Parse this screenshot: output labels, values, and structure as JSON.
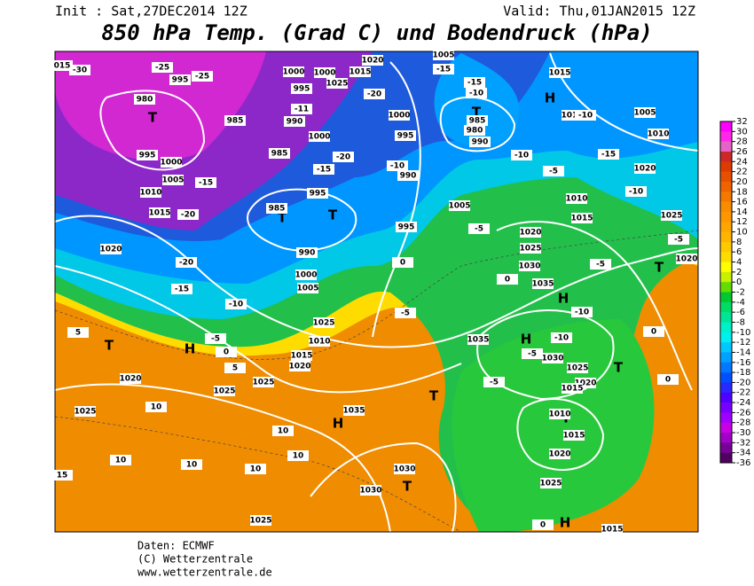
{
  "header": {
    "init": "Init : Sat,27DEC2014 12Z",
    "valid": "Valid: Thu,01JAN2015 12Z",
    "title": "850 hPa Temp. (Grad C) und Bodendruck (hPa)"
  },
  "colorbar": {
    "labels": [
      32,
      30,
      28,
      26,
      24,
      22,
      20,
      18,
      16,
      14,
      12,
      10,
      8,
      6,
      4,
      2,
      0,
      -2,
      -4,
      -6,
      -8,
      -10,
      -12,
      -14,
      -16,
      -18,
      -20,
      -22,
      -24,
      -26,
      -28,
      -30,
      -32,
      -34,
      -36
    ],
    "colors": [
      "#ff00ff",
      "#ff28e6",
      "#e664c8",
      "#cd2828",
      "#dc3c00",
      "#e65000",
      "#f06400",
      "#f57800",
      "#fa8c00",
      "#ff9600",
      "#ffa500",
      "#ffb400",
      "#ffc800",
      "#ffdc00",
      "#ffff00",
      "#c8f000",
      "#64dc00",
      "#00c832",
      "#00dc64",
      "#00e696",
      "#00f0c8",
      "#00f0f0",
      "#00c8ff",
      "#00a0ff",
      "#0078ff",
      "#0050ff",
      "#2828ff",
      "#5000ff",
      "#7800ff",
      "#a000ff",
      "#c800e6",
      "#a000c8",
      "#780096",
      "#500064"
    ]
  },
  "map": {
    "labels": [
      "T",
      "T",
      "T",
      "T",
      "T",
      "H",
      "H",
      "H",
      "H",
      "T",
      "T",
      "H",
      "T",
      "T",
      "H",
      "T",
      "980",
      "995",
      "985",
      "1000",
      "1005",
      "1010",
      "1015",
      "1020",
      "995",
      "1000",
      "995",
      "990",
      "1000",
      "985",
      "995",
      "985",
      "990",
      "1000",
      "1005",
      "1025",
      "1010",
      "1015",
      "1020",
      "1025",
      "1025",
      "1020",
      "1025",
      "1035",
      "1030",
      "1030",
      "1025",
      "995",
      "1000",
      "990",
      "995",
      "1005",
      "1020",
      "1025",
      "1030",
      "1035",
      "1035",
      "1030",
      "1025",
      "1020",
      "1015",
      "1010",
      "1015",
      "1020",
      "1025",
      "1015",
      "1010",
      "1005",
      "1010",
      "1020",
      "1025",
      "1020",
      "1010",
      "1015",
      "1015",
      "985",
      "990",
      "980",
      "1005",
      "1020",
      "1015",
      "1025",
      "1000",
      "-30",
      "-25",
      "-25",
      "-15",
      "-20",
      "-20",
      "-15",
      "-10",
      "-5",
      "0",
      "5",
      "5",
      "10",
      "10",
      "10",
      "10",
      "10",
      "10",
      "15",
      "-15",
      "-20",
      "-20",
      "-11",
      "-15",
      "-15",
      "-10",
      "-10",
      "-10",
      "-5",
      "-10",
      "-15",
      "-10",
      "-5",
      "-5",
      "-10",
      "-10",
      "-5",
      "-5",
      "0",
      "0",
      "0",
      "0",
      "-5",
      "0",
      "-5",
      "015"
    ]
  },
  "footer": {
    "lines": [
      "Daten: ECMWF",
      "(C) Wetterzentrale",
      "www.wetterzentrale.de"
    ]
  }
}
